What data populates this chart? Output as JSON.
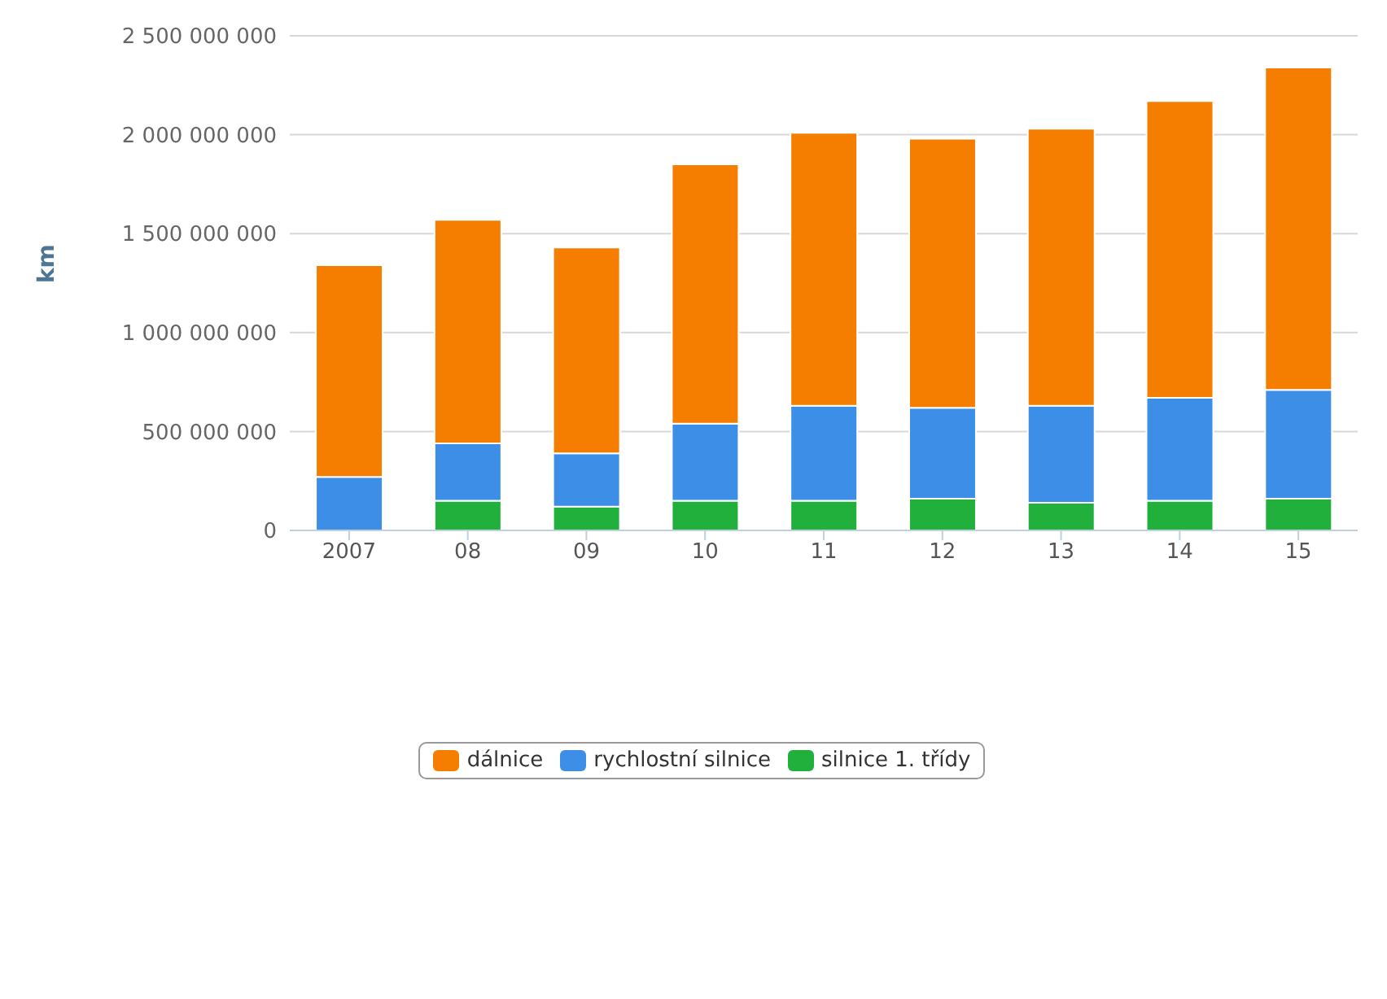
{
  "chart_data": {
    "type": "bar",
    "stacked": true,
    "ylabel": "km",
    "categories": [
      "2007",
      "08",
      "09",
      "10",
      "11",
      "12",
      "13",
      "14",
      "15"
    ],
    "series": [
      {
        "name": "silnice 1. třídy",
        "color": "#22b03c",
        "values": [
          null,
          150000000,
          120000000,
          150000000,
          150000000,
          160000000,
          140000000,
          150000000,
          160000000
        ]
      },
      {
        "name": "rychlostní silnice",
        "color": "#3d8ee6",
        "values": [
          270000000,
          290000000,
          270000000,
          390000000,
          480000000,
          460000000,
          490000000,
          520000000,
          550000000
        ]
      },
      {
        "name": "dálnice",
        "color": "#f57d00",
        "values": [
          1070000000,
          1130000000,
          1040000000,
          1310000000,
          1380000000,
          1360000000,
          1400000000,
          1500000000,
          1630000000
        ]
      }
    ],
    "ylim": [
      0,
      2500000000
    ],
    "yticks": [
      0,
      {
        "value": 500000000,
        "label": "500 000 000"
      },
      {
        "value": 1000000000,
        "label": "1 000 000 000"
      },
      {
        "value": 1500000000,
        "label": "1 500 000 000"
      },
      {
        "value": 2000000000,
        "label": "2 000 000 000"
      },
      {
        "value": 2500000000,
        "label": "2 500 000 000"
      }
    ],
    "grid": "y",
    "legend": "bottom"
  }
}
